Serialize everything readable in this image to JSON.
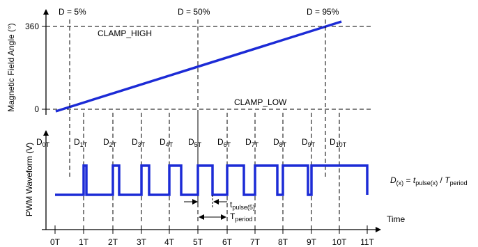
{
  "colors": {
    "signal": "#1c2bd6",
    "ink": "#000000",
    "guide": "#000000"
  },
  "top_plot": {
    "y_axis_label": "Magnetic Field Angle (°)",
    "y_ticks": [
      "360",
      "0"
    ],
    "clamp_high_label": "CLAMP_HIGH",
    "clamp_low_label": "CLAMP_LOW",
    "duty_markers": [
      "D = 5%",
      "D = 50%",
      "D = 95%"
    ]
  },
  "bottom_plot": {
    "y_axis_label": "PWM Waveform (V)",
    "x_axis_label": "Time",
    "period_labels": [
      {
        "base": "D",
        "sub": "0T"
      },
      {
        "base": "D",
        "sub": "1T"
      },
      {
        "base": "D",
        "sub": "2T"
      },
      {
        "base": "D",
        "sub": "3T"
      },
      {
        "base": "D",
        "sub": "4T"
      },
      {
        "base": "D",
        "sub": "5T"
      },
      {
        "base": "D",
        "sub": "6T"
      },
      {
        "base": "D",
        "sub": "7T"
      },
      {
        "base": "D",
        "sub": "8T"
      },
      {
        "base": "D",
        "sub": "9T"
      },
      {
        "base": "D",
        "sub": "10T"
      }
    ],
    "time_ticks": [
      "0T",
      "1T",
      "2T",
      "3T",
      "4T",
      "5T",
      "6T",
      "7T",
      "8T",
      "9T",
      "10T",
      "11T"
    ],
    "t_pulse_label": {
      "base": "t",
      "sub": "pulse(5)"
    },
    "t_period_label": {
      "base": "T",
      "sub": "period"
    },
    "formula": {
      "lhs": "D",
      "lhs_sub": "(x)",
      "equals": " = ",
      "num": "t",
      "num_sub": "pulse(x)",
      "slash": " / ",
      "den": "T",
      "den_sub": "period"
    }
  }
}
